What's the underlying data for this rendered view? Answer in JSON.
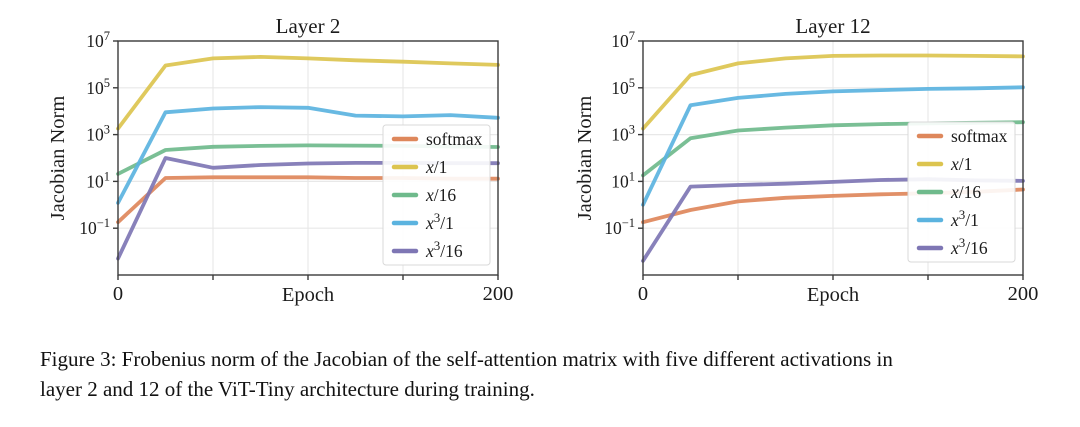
{
  "page": {
    "background": "#ffffff"
  },
  "figure": {
    "caption_lines": [
      "Figure 3: Frobenius norm of the Jacobian of the self-attention matrix with five different activations in",
      "layer 2 and 12 of the ViT-Tiny architecture during training."
    ]
  },
  "style": {
    "text_color": "#1c1c1c",
    "grid_color": "#e8e8e8",
    "spine_color": "#3b3b3b",
    "legend_border": "#d9d9d9",
    "legend_fill": "#ffffff",
    "legend_fill_opacity": 0.9,
    "series_colors": {
      "softmax": "#de875b",
      "x/1": "#dcc44f",
      "x/16": "#6fba8c",
      "x^3/1": "#5bb3df",
      "x^3/16": "#7e76b4"
    }
  },
  "chart_data": [
    {
      "type": "line",
      "title": "Layer 2",
      "xlabel": "Epoch",
      "ylabel": "Jacobian Norm",
      "xlim": [
        0,
        200
      ],
      "yscale": "log",
      "ylim": [
        0.001,
        10000000
      ],
      "yticks": [
        10000000,
        100000,
        1000,
        10,
        0.1
      ],
      "ytick_labels": [
        "10^7",
        "10^5",
        "10^3",
        "10^1",
        "10^-1"
      ],
      "xticks": [
        0,
        50,
        100,
        150,
        200
      ],
      "xtick_labels": [
        "0",
        "",
        "",
        "",
        "200"
      ],
      "grid": true,
      "legend_position": "lower right",
      "x": [
        0,
        25,
        50,
        75,
        100,
        125,
        150,
        175,
        200
      ],
      "series": [
        {
          "name": "softmax",
          "color": "#de875b",
          "values": [
            0.18,
            14,
            15,
            15,
            15,
            14,
            14,
            13,
            13
          ]
        },
        {
          "name": "x/1",
          "color": "#dcc44f",
          "values": [
            1800,
            900000,
            1800000,
            2100000,
            1800000,
            1500000,
            1300000,
            1100000,
            950000
          ]
        },
        {
          "name": "x/16",
          "color": "#6fba8c",
          "values": [
            21,
            220,
            300,
            330,
            345,
            340,
            330,
            310,
            295
          ]
        },
        {
          "name": "x^3/1",
          "color": "#5bb3df",
          "values": [
            1.2,
            9000,
            13000,
            15000,
            14000,
            6500,
            6000,
            6800,
            5200
          ]
        },
        {
          "name": "x^3/16",
          "color": "#7e76b4",
          "values": [
            0.005,
            100,
            38,
            50,
            58,
            62,
            62,
            60,
            60
          ]
        }
      ]
    },
    {
      "type": "line",
      "title": "Layer 12",
      "xlabel": "Epoch",
      "ylabel": "Jacobian Norm",
      "xlim": [
        0,
        200
      ],
      "yscale": "log",
      "ylim": [
        0.001,
        10000000
      ],
      "yticks": [
        10000000,
        100000,
        1000,
        10,
        0.1
      ],
      "ytick_labels": [
        "10^7",
        "10^5",
        "10^3",
        "10^1",
        "10^-1"
      ],
      "xticks": [
        0,
        50,
        100,
        150,
        200
      ],
      "xtick_labels": [
        "0",
        "",
        "",
        "",
        "200"
      ],
      "grid": true,
      "legend_position": "lower right",
      "x": [
        0,
        25,
        50,
        75,
        100,
        125,
        150,
        175,
        200
      ],
      "series": [
        {
          "name": "softmax",
          "color": "#de875b",
          "values": [
            0.18,
            0.6,
            1.4,
            2.0,
            2.4,
            2.8,
            3.1,
            3.6,
            4.5
          ]
        },
        {
          "name": "x/1",
          "color": "#dcc44f",
          "values": [
            1800,
            350000,
            1100000,
            1800000,
            2300000,
            2400000,
            2400000,
            2300000,
            2200000
          ]
        },
        {
          "name": "x/16",
          "color": "#6fba8c",
          "values": [
            18,
            700,
            1500,
            2000,
            2500,
            2800,
            3000,
            3200,
            3400
          ]
        },
        {
          "name": "x^3/1",
          "color": "#5bb3df",
          "values": [
            1.0,
            18000,
            37000,
            55000,
            70000,
            80000,
            90000,
            95000,
            105000
          ]
        },
        {
          "name": "x^3/16",
          "color": "#7e76b4",
          "values": [
            0.004,
            6,
            7,
            8,
            9.5,
            11.5,
            12.5,
            11,
            10.5
          ]
        }
      ]
    }
  ]
}
